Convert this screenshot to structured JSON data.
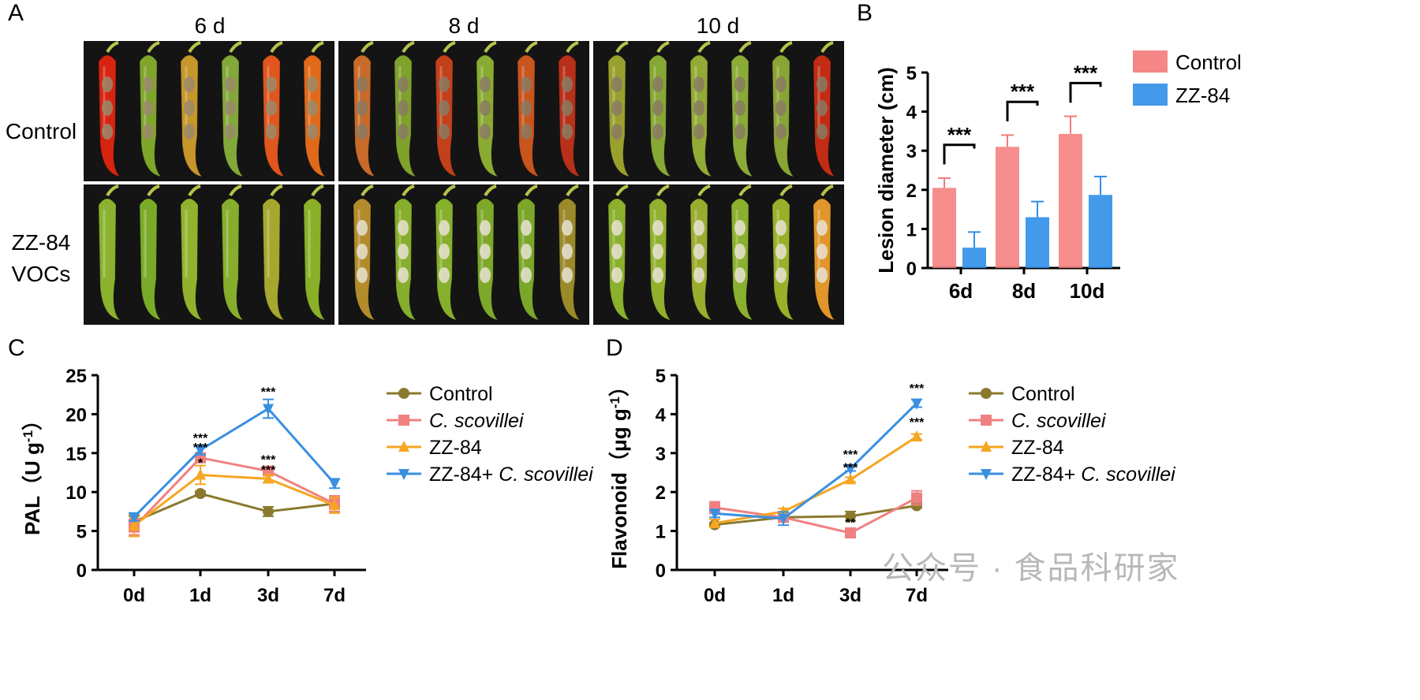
{
  "panel_A": {
    "letter": "A",
    "columns": [
      "6 d",
      "8 d",
      "10 d"
    ],
    "rows": [
      "Control",
      "ZZ-84\nVOCs"
    ],
    "peppers": {
      "control": [
        [
          "#d62410",
          "#7fa52a",
          "#c7962a",
          "#83a83a",
          "#e0561c",
          "#e06a1a"
        ],
        [
          "#c86a2a",
          "#7ea22c",
          "#c2401a",
          "#8aab32",
          "#c8541e",
          "#b8301a"
        ],
        [
          "#9aa02e",
          "#86a834",
          "#92ab34",
          "#8aab36",
          "#8aa534",
          "#c22c14"
        ]
      ],
      "vocs": [
        [
          "#8ab22e",
          "#7aab28",
          "#92b22e",
          "#86ae2c",
          "#a5a82e",
          "#8ab028"
        ],
        [
          "#b28c2a",
          "#86ae2c",
          "#86b02c",
          "#7ea82a",
          "#7aa62a",
          "#9a8a2a"
        ],
        [
          "#8ab02c",
          "#92b02e",
          "#9aac2e",
          "#8ab02e",
          "#9ab02a",
          "#e0962a"
        ]
      ]
    }
  },
  "panel_B": {
    "letter": "B",
    "chart_data": {
      "type": "bar",
      "categories": [
        "6d",
        "8d",
        "10d"
      ],
      "series": [
        {
          "name": "Control",
          "values": [
            2.05,
            3.1,
            3.43
          ],
          "errors": [
            0.25,
            0.3,
            0.45
          ],
          "color": "#f47a7a"
        },
        {
          "name": "ZZ-84",
          "values": [
            0.52,
            1.3,
            1.87
          ],
          "errors": [
            0.4,
            0.4,
            0.47
          ],
          "color": "#2f8fe8"
        }
      ],
      "ylabel": "Lesion diameter (cm)",
      "ylim": [
        0,
        5
      ],
      "yticks": [
        "0",
        "1",
        "2",
        "3",
        "4",
        "5"
      ],
      "significance": [
        "***",
        "***",
        "***"
      ],
      "legend": "top-right"
    }
  },
  "panel_C": {
    "letter": "C",
    "chart_data": {
      "type": "line",
      "x": [
        "0d",
        "1d",
        "3d",
        "7d"
      ],
      "ylabel_main": "PAL",
      "ylabel_unit": "（U g",
      "ylabel_sup": "-1",
      "ylabel_end": "）",
      "ylim": [
        0,
        25
      ],
      "yticks": [
        "0",
        "5",
        "10",
        "15",
        "20",
        "25"
      ],
      "series": [
        {
          "name": "Control",
          "italic": false,
          "marker": "circle",
          "color": "#8a7a2e",
          "values": [
            6.2,
            9.8,
            7.5,
            8.5
          ],
          "errors": [
            0.7,
            0.3,
            0.6,
            1.0
          ]
        },
        {
          "name": "C. scovillei",
          "italic": true,
          "marker": "square",
          "color": "#f08080",
          "values": [
            5.5,
            14.4,
            12.7,
            8.5
          ],
          "errors": [
            1.0,
            0.6,
            0.5,
            1.0
          ]
        },
        {
          "name": "ZZ-84",
          "italic": false,
          "marker": "triangle-up",
          "color": "#f5a623",
          "values": [
            5.7,
            12.2,
            11.7,
            8.3
          ],
          "errors": [
            1.4,
            1.2,
            0.5,
            1.0
          ]
        },
        {
          "name": "ZZ-84+",
          "italic_suffix": " C. scovillei",
          "italic": false,
          "marker": "triangle-down",
          "color": "#3a8fe0",
          "values": [
            6.8,
            15.4,
            20.7,
            11.1
          ],
          "errors": [
            0.5,
            0.6,
            1.2,
            0.6
          ]
        }
      ],
      "annotations": [
        {
          "x": "1d",
          "y": 16.4,
          "text": "***"
        },
        {
          "x": "1d",
          "y": 15.2,
          "text": "***"
        },
        {
          "x": "1d",
          "y": 13.2,
          "text": "*"
        },
        {
          "x": "3d",
          "y": 22.3,
          "text": "***"
        },
        {
          "x": "3d",
          "y": 13.6,
          "text": "***"
        },
        {
          "x": "3d",
          "y": 12.3,
          "text": "***"
        }
      ],
      "legend": "right"
    }
  },
  "panel_D": {
    "letter": "D",
    "chart_data": {
      "type": "line",
      "x": [
        "0d",
        "1d",
        "3d",
        "7d"
      ],
      "ylabel_main": "Flavonoid（μg g",
      "ylabel_sup": "-1",
      "ylabel_end": "）",
      "ylim": [
        0,
        5
      ],
      "yticks": [
        "0",
        "1",
        "2",
        "3",
        "4",
        "5"
      ],
      "series": [
        {
          "name": "Control",
          "italic": false,
          "marker": "circle",
          "color": "#8a7a2e",
          "values": [
            1.16,
            1.35,
            1.38,
            1.65
          ],
          "errors": [
            0.05,
            0.08,
            0.12,
            0.05
          ]
        },
        {
          "name": "C. scovillei",
          "italic": true,
          "marker": "square",
          "color": "#f08080",
          "values": [
            1.6,
            1.35,
            0.95,
            1.85
          ],
          "errors": [
            0.15,
            0.12,
            0.12,
            0.18
          ]
        },
        {
          "name": "ZZ-84",
          "italic": false,
          "marker": "triangle-up",
          "color": "#f5a623",
          "values": [
            1.2,
            1.5,
            2.32,
            3.42
          ],
          "errors": [
            0.1,
            0.08,
            0.06,
            0.07
          ]
        },
        {
          "name": "ZZ-84+",
          "italic_suffix": " C. scovillei",
          "italic": false,
          "marker": "triangle-down",
          "color": "#3a8fe0",
          "values": [
            1.45,
            1.32,
            2.6,
            4.28
          ],
          "errors": [
            0.1,
            0.17,
            0.06,
            0.1
          ]
        }
      ],
      "annotations": [
        {
          "x": "3d",
          "y": 2.85,
          "text": "***"
        },
        {
          "x": "3d",
          "y": 2.52,
          "text": "***"
        },
        {
          "x": "3d",
          "y": 1.1,
          "text": "**"
        },
        {
          "x": "7d",
          "y": 4.55,
          "text": "***"
        },
        {
          "x": "7d",
          "y": 3.68,
          "text": "***"
        }
      ],
      "legend": "right"
    }
  },
  "watermark": "公众号 · 食品科研家"
}
